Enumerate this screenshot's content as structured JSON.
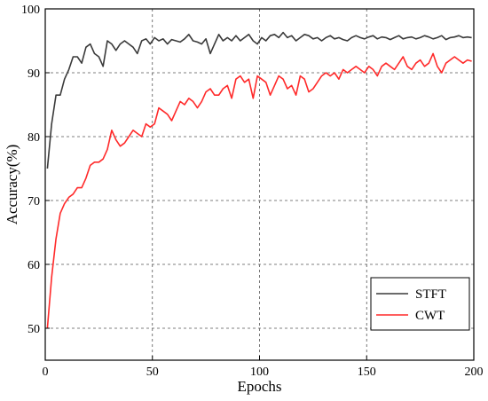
{
  "chart_data": {
    "type": "line",
    "xlabel": "Epochs",
    "ylabel": "Accuracy(%)",
    "xlim": [
      0,
      200
    ],
    "ylim": [
      45,
      100
    ],
    "xticks": [
      0,
      50,
      100,
      150,
      200
    ],
    "yticks": [
      50,
      60,
      70,
      80,
      90,
      100
    ],
    "grid": true,
    "grid_style": "dashed",
    "legend_position": "bottom-right",
    "series": [
      {
        "name": "STFT",
        "color": "#3a3a3a",
        "x": [
          1,
          3,
          5,
          7,
          9,
          11,
          13,
          15,
          17,
          19,
          21,
          23,
          25,
          27,
          29,
          31,
          33,
          35,
          37,
          39,
          41,
          43,
          45,
          47,
          49,
          51,
          53,
          55,
          57,
          59,
          61,
          63,
          65,
          67,
          69,
          71,
          73,
          75,
          77,
          79,
          81,
          83,
          85,
          87,
          89,
          91,
          93,
          95,
          97,
          99,
          101,
          103,
          105,
          107,
          109,
          111,
          113,
          115,
          117,
          119,
          121,
          123,
          125,
          127,
          129,
          131,
          133,
          135,
          137,
          139,
          141,
          143,
          145,
          147,
          149,
          151,
          153,
          155,
          157,
          159,
          161,
          163,
          165,
          167,
          169,
          171,
          173,
          175,
          177,
          179,
          181,
          183,
          185,
          187,
          189,
          191,
          193,
          195,
          197,
          199
        ],
        "y": [
          75.0,
          82.0,
          86.5,
          86.5,
          89.0,
          90.5,
          92.5,
          92.5,
          91.5,
          94.0,
          94.5,
          93.0,
          92.5,
          91.0,
          95.0,
          94.5,
          93.5,
          94.5,
          95.0,
          94.5,
          94.0,
          93.0,
          95.0,
          95.3,
          94.5,
          95.5,
          95.0,
          95.3,
          94.5,
          95.2,
          95.0,
          94.8,
          95.3,
          96.0,
          95.0,
          94.8,
          94.5,
          95.3,
          93.0,
          94.5,
          96.0,
          95.0,
          95.5,
          95.0,
          95.8,
          95.0,
          95.5,
          96.0,
          95.0,
          94.5,
          95.5,
          95.0,
          95.8,
          96.0,
          95.5,
          96.3,
          95.5,
          95.8,
          95.0,
          95.5,
          96.0,
          95.8,
          95.3,
          95.5,
          95.0,
          95.5,
          95.8,
          95.3,
          95.5,
          95.2,
          95.0,
          95.5,
          95.8,
          95.5,
          95.3,
          95.6,
          95.8,
          95.3,
          95.6,
          95.5,
          95.2,
          95.5,
          95.8,
          95.3,
          95.5,
          95.6,
          95.3,
          95.5,
          95.8,
          95.6,
          95.3,
          95.5,
          95.8,
          95.2,
          95.5,
          95.6,
          95.8,
          95.5,
          95.6,
          95.5
        ]
      },
      {
        "name": "CWT",
        "color": "#ff2a2a",
        "x": [
          1,
          3,
          5,
          7,
          9,
          11,
          13,
          15,
          17,
          19,
          21,
          23,
          25,
          27,
          29,
          31,
          33,
          35,
          37,
          39,
          41,
          43,
          45,
          47,
          49,
          51,
          53,
          55,
          57,
          59,
          61,
          63,
          65,
          67,
          69,
          71,
          73,
          75,
          77,
          79,
          81,
          83,
          85,
          87,
          89,
          91,
          93,
          95,
          97,
          99,
          101,
          103,
          105,
          107,
          109,
          111,
          113,
          115,
          117,
          119,
          121,
          123,
          125,
          127,
          129,
          131,
          133,
          135,
          137,
          139,
          141,
          143,
          145,
          147,
          149,
          151,
          153,
          155,
          157,
          159,
          161,
          163,
          165,
          167,
          169,
          171,
          173,
          175,
          177,
          179,
          181,
          183,
          185,
          187,
          189,
          191,
          193,
          195,
          197,
          199
        ],
        "y": [
          50.0,
          58.0,
          64.0,
          68.0,
          69.5,
          70.5,
          71.0,
          72.0,
          72.0,
          73.5,
          75.5,
          76.0,
          76.0,
          76.5,
          78.0,
          81.0,
          79.5,
          78.5,
          79.0,
          80.0,
          81.0,
          80.5,
          80.0,
          82.0,
          81.5,
          82.0,
          84.5,
          84.0,
          83.5,
          82.5,
          84.0,
          85.5,
          85.0,
          86.0,
          85.5,
          84.5,
          85.5,
          87.0,
          87.5,
          86.5,
          86.5,
          87.5,
          88.0,
          86.0,
          89.0,
          89.5,
          88.5,
          89.0,
          86.0,
          89.5,
          89.0,
          88.5,
          86.5,
          88.0,
          89.5,
          89.0,
          87.5,
          88.0,
          86.5,
          89.5,
          89.0,
          87.0,
          87.5,
          88.5,
          89.5,
          90.0,
          89.5,
          90.0,
          89.0,
          90.5,
          90.0,
          90.5,
          91.0,
          90.5,
          90.0,
          91.0,
          90.5,
          89.5,
          91.0,
          91.5,
          91.0,
          90.5,
          91.5,
          92.5,
          91.0,
          90.5,
          91.5,
          92.0,
          91.0,
          91.5,
          93.0,
          91.0,
          90.0,
          91.5,
          92.0,
          92.5,
          92.0,
          91.5,
          92.0,
          91.8
        ]
      }
    ]
  }
}
